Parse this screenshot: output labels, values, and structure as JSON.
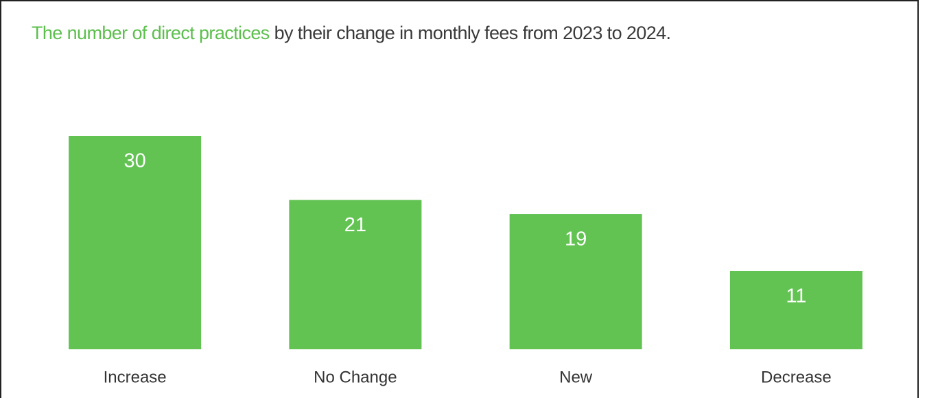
{
  "chart_data": {
    "type": "bar",
    "title_parts": [
      {
        "text": "The number of direct practices",
        "color": "#5cbf4d"
      },
      {
        "text": "by their change in monthly fees from 2023 to 2024.",
        "color": "#3a3a3a"
      }
    ],
    "categories": [
      "Increase",
      "No Change",
      "New",
      "Decrease"
    ],
    "values": [
      30,
      21,
      19,
      11
    ],
    "color": "#62c353",
    "value_label_color": "#ffffff"
  }
}
